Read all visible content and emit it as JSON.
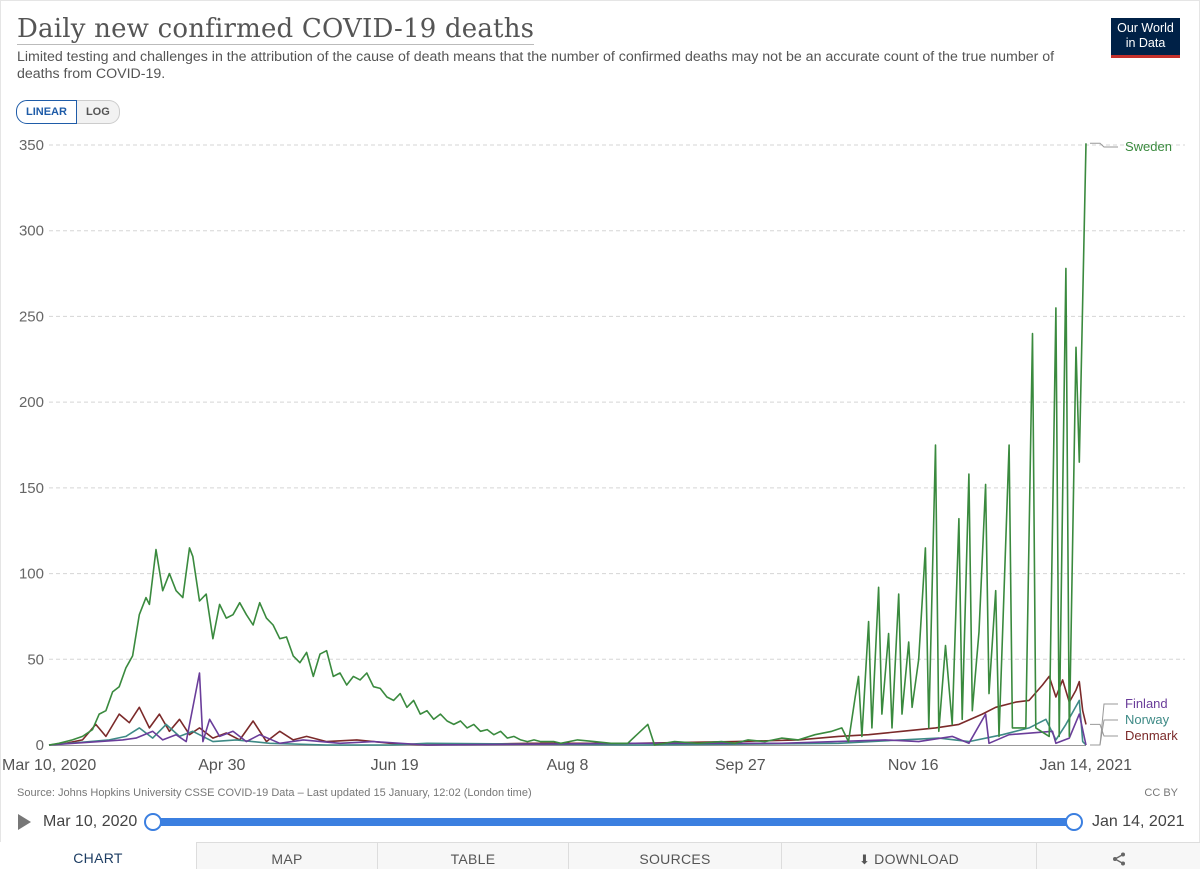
{
  "title": "Daily new confirmed COVID-19 deaths",
  "subtitle": "Limited testing and challenges in the attribution of the cause of death means that the number of confirmed deaths may not be an accurate count of the true number of deaths from COVID-19.",
  "logo": {
    "line1": "Our World",
    "line2": "in Data"
  },
  "scale_toggle": {
    "linear": "LINEAR",
    "log": "LOG"
  },
  "source": "Source: Johns Hopkins University CSSE COVID-19 Data – Last updated 15 January, 12:02 (London time)",
  "license": "CC BY",
  "timeline": {
    "start": "Mar 10, 2020",
    "end": "Jan 14, 2021"
  },
  "tabs": {
    "chart": "CHART",
    "map": "MAP",
    "table": "TABLE",
    "sources": "SOURCES",
    "download": "DOWNLOAD"
  },
  "colors": {
    "Sweden": "#3a8a3e",
    "Finland": "#6a3d9a",
    "Norway": "#3e8a86",
    "Denmark": "#7b2a2a",
    "accent": "#3b7fe0"
  },
  "chart_data": {
    "type": "line",
    "x_start": "2020-03-10",
    "x_end": "2021-01-14",
    "ylim": [
      0,
      350
    ],
    "yticks": [
      0,
      50,
      100,
      150,
      200,
      250,
      300,
      350
    ],
    "xticks": [
      "Mar 10, 2020",
      "Apr 30",
      "Jun 19",
      "Aug 8",
      "Sep 27",
      "Nov 16",
      "Jan 14, 2021"
    ],
    "grid": "horizontal dashed",
    "series": [
      {
        "name": "Sweden",
        "color": "#3a8a3e",
        "points": [
          [
            "2020-03-10",
            0
          ],
          [
            "2020-03-13",
            1
          ],
          [
            "2020-03-17",
            3
          ],
          [
            "2020-03-20",
            5
          ],
          [
            "2020-03-23",
            9
          ],
          [
            "2020-03-25",
            18
          ],
          [
            "2020-03-27",
            20
          ],
          [
            "2020-03-29",
            31
          ],
          [
            "2020-03-31",
            34
          ],
          [
            "2020-04-02",
            45
          ],
          [
            "2020-04-04",
            52
          ],
          [
            "2020-04-06",
            76
          ],
          [
            "2020-04-08",
            86
          ],
          [
            "2020-04-09",
            82
          ],
          [
            "2020-04-11",
            114
          ],
          [
            "2020-04-13",
            90
          ],
          [
            "2020-04-15",
            100
          ],
          [
            "2020-04-17",
            90
          ],
          [
            "2020-04-19",
            86
          ],
          [
            "2020-04-21",
            115
          ],
          [
            "2020-04-22",
            110
          ],
          [
            "2020-04-24",
            84
          ],
          [
            "2020-04-26",
            88
          ],
          [
            "2020-04-28",
            62
          ],
          [
            "2020-04-30",
            82
          ],
          [
            "2020-05-02",
            74
          ],
          [
            "2020-05-04",
            76
          ],
          [
            "2020-05-06",
            83
          ],
          [
            "2020-05-08",
            76
          ],
          [
            "2020-05-10",
            70
          ],
          [
            "2020-05-12",
            83
          ],
          [
            "2020-05-14",
            74
          ],
          [
            "2020-05-16",
            70
          ],
          [
            "2020-05-18",
            62
          ],
          [
            "2020-05-20",
            63
          ],
          [
            "2020-05-22",
            52
          ],
          [
            "2020-05-24",
            48
          ],
          [
            "2020-05-26",
            54
          ],
          [
            "2020-05-28",
            40
          ],
          [
            "2020-05-30",
            53
          ],
          [
            "2020-06-01",
            55
          ],
          [
            "2020-06-03",
            40
          ],
          [
            "2020-06-05",
            42
          ],
          [
            "2020-06-07",
            35
          ],
          [
            "2020-06-09",
            40
          ],
          [
            "2020-06-11",
            38
          ],
          [
            "2020-06-13",
            42
          ],
          [
            "2020-06-15",
            34
          ],
          [
            "2020-06-17",
            33
          ],
          [
            "2020-06-19",
            28
          ],
          [
            "2020-06-21",
            26
          ],
          [
            "2020-06-23",
            30
          ],
          [
            "2020-06-25",
            22
          ],
          [
            "2020-06-27",
            26
          ],
          [
            "2020-06-29",
            18
          ],
          [
            "2020-07-01",
            20
          ],
          [
            "2020-07-03",
            15
          ],
          [
            "2020-07-05",
            18
          ],
          [
            "2020-07-07",
            14
          ],
          [
            "2020-07-09",
            12
          ],
          [
            "2020-07-11",
            14
          ],
          [
            "2020-07-13",
            10
          ],
          [
            "2020-07-15",
            12
          ],
          [
            "2020-07-17",
            8
          ],
          [
            "2020-07-19",
            9
          ],
          [
            "2020-07-21",
            6
          ],
          [
            "2020-07-23",
            8
          ],
          [
            "2020-07-25",
            4
          ],
          [
            "2020-07-27",
            5
          ],
          [
            "2020-07-29",
            3
          ],
          [
            "2020-07-31",
            2
          ],
          [
            "2020-08-02",
            3
          ],
          [
            "2020-08-04",
            2
          ],
          [
            "2020-08-06",
            2
          ],
          [
            "2020-08-08",
            2
          ],
          [
            "2020-08-10",
            1
          ],
          [
            "2020-08-15",
            3
          ],
          [
            "2020-08-20",
            2
          ],
          [
            "2020-08-25",
            1
          ],
          [
            "2020-08-30",
            1
          ],
          [
            "2020-09-05",
            12
          ],
          [
            "2020-09-07",
            0
          ],
          [
            "2020-09-13",
            2
          ],
          [
            "2020-09-20",
            1
          ],
          [
            "2020-09-27",
            2
          ],
          [
            "2020-10-01",
            1
          ],
          [
            "2020-10-05",
            3
          ],
          [
            "2020-10-10",
            2
          ],
          [
            "2020-10-15",
            4
          ],
          [
            "2020-10-20",
            3
          ],
          [
            "2020-10-25",
            6
          ],
          [
            "2020-10-30",
            8
          ],
          [
            "2020-11-02",
            10
          ],
          [
            "2020-11-04",
            2
          ],
          [
            "2020-11-06",
            28
          ],
          [
            "2020-11-07",
            40
          ],
          [
            "2020-11-08",
            5
          ],
          [
            "2020-11-10",
            72
          ],
          [
            "2020-11-11",
            10
          ],
          [
            "2020-11-13",
            92
          ],
          [
            "2020-11-14",
            18
          ],
          [
            "2020-11-16",
            65
          ],
          [
            "2020-11-17",
            10
          ],
          [
            "2020-11-19",
            88
          ],
          [
            "2020-11-20",
            18
          ],
          [
            "2020-11-22",
            60
          ],
          [
            "2020-11-23",
            22
          ],
          [
            "2020-11-25",
            50
          ],
          [
            "2020-11-27",
            115
          ],
          [
            "2020-11-28",
            10
          ],
          [
            "2020-11-30",
            175
          ],
          [
            "2020-12-01",
            8
          ],
          [
            "2020-12-03",
            58
          ],
          [
            "2020-12-05",
            12
          ],
          [
            "2020-12-07",
            132
          ],
          [
            "2020-12-08",
            15
          ],
          [
            "2020-12-10",
            158
          ],
          [
            "2020-12-11",
            20
          ],
          [
            "2020-12-13",
            66
          ],
          [
            "2020-12-15",
            152
          ],
          [
            "2020-12-16",
            30
          ],
          [
            "2020-12-18",
            90
          ],
          [
            "2020-12-19",
            5
          ],
          [
            "2020-12-22",
            175
          ],
          [
            "2020-12-23",
            10
          ],
          [
            "2020-12-27",
            10
          ],
          [
            "2020-12-29",
            240
          ],
          [
            "2020-12-30",
            10
          ],
          [
            "2021-01-03",
            5
          ],
          [
            "2021-01-05",
            255
          ],
          [
            "2021-01-06",
            5
          ],
          [
            "2021-01-08",
            278
          ],
          [
            "2021-01-09",
            5
          ],
          [
            "2021-01-11",
            232
          ],
          [
            "2021-01-12",
            165
          ],
          [
            "2021-01-14",
            351
          ]
        ]
      },
      {
        "name": "Finland",
        "color": "#6a3d9a",
        "points": [
          [
            "2020-03-10",
            0
          ],
          [
            "2020-03-25",
            2
          ],
          [
            "2020-04-01",
            3
          ],
          [
            "2020-04-05",
            4
          ],
          [
            "2020-04-10",
            8
          ],
          [
            "2020-04-13",
            3
          ],
          [
            "2020-04-17",
            6
          ],
          [
            "2020-04-20",
            2
          ],
          [
            "2020-04-24",
            42
          ],
          [
            "2020-04-25",
            2
          ],
          [
            "2020-04-27",
            15
          ],
          [
            "2020-04-30",
            5
          ],
          [
            "2020-05-04",
            8
          ],
          [
            "2020-05-08",
            2
          ],
          [
            "2020-05-12",
            6
          ],
          [
            "2020-05-18",
            1
          ],
          [
            "2020-05-25",
            3
          ],
          [
            "2020-06-05",
            1
          ],
          [
            "2020-06-15",
            2
          ],
          [
            "2020-07-01",
            0
          ],
          [
            "2020-09-01",
            1
          ],
          [
            "2020-10-15",
            1
          ],
          [
            "2020-11-15",
            3
          ],
          [
            "2020-11-25",
            2
          ],
          [
            "2020-12-05",
            5
          ],
          [
            "2020-12-10",
            1
          ],
          [
            "2020-12-15",
            18
          ],
          [
            "2020-12-16",
            1
          ],
          [
            "2020-12-22",
            6
          ],
          [
            "2021-01-04",
            8
          ],
          [
            "2021-01-05",
            1
          ],
          [
            "2021-01-09",
            4
          ],
          [
            "2021-01-12",
            18
          ],
          [
            "2021-01-14",
            0
          ]
        ]
      },
      {
        "name": "Norway",
        "color": "#3e8a86",
        "points": [
          [
            "2020-03-10",
            0
          ],
          [
            "2020-03-28",
            3
          ],
          [
            "2020-04-02",
            5
          ],
          [
            "2020-04-06",
            10
          ],
          [
            "2020-04-10",
            4
          ],
          [
            "2020-04-14",
            12
          ],
          [
            "2020-04-18",
            5
          ],
          [
            "2020-04-22",
            8
          ],
          [
            "2020-04-28",
            2
          ],
          [
            "2020-05-05",
            3
          ],
          [
            "2020-05-15",
            1
          ],
          [
            "2020-06-01",
            0
          ],
          [
            "2020-06-20",
            0
          ],
          [
            "2020-07-01",
            1
          ],
          [
            "2020-09-01",
            0
          ],
          [
            "2020-11-01",
            1
          ],
          [
            "2020-11-20",
            3
          ],
          [
            "2020-12-01",
            4
          ],
          [
            "2020-12-10",
            2
          ],
          [
            "2020-12-20",
            6
          ],
          [
            "2020-12-28",
            10
          ],
          [
            "2021-01-02",
            15
          ],
          [
            "2021-01-05",
            3
          ],
          [
            "2021-01-08",
            12
          ],
          [
            "2021-01-12",
            26
          ],
          [
            "2021-01-13",
            2
          ],
          [
            "2021-01-14",
            0
          ]
        ]
      },
      {
        "name": "Denmark",
        "color": "#7b2a2a",
        "points": [
          [
            "2020-03-10",
            0
          ],
          [
            "2020-03-15",
            1
          ],
          [
            "2020-03-20",
            3
          ],
          [
            "2020-03-24",
            12
          ],
          [
            "2020-03-27",
            5
          ],
          [
            "2020-03-31",
            18
          ],
          [
            "2020-04-03",
            13
          ],
          [
            "2020-04-06",
            22
          ],
          [
            "2020-04-09",
            10
          ],
          [
            "2020-04-12",
            18
          ],
          [
            "2020-04-15",
            8
          ],
          [
            "2020-04-18",
            15
          ],
          [
            "2020-04-21",
            6
          ],
          [
            "2020-04-24",
            10
          ],
          [
            "2020-04-28",
            4
          ],
          [
            "2020-05-02",
            7
          ],
          [
            "2020-05-06",
            3
          ],
          [
            "2020-05-10",
            14
          ],
          [
            "2020-05-14",
            2
          ],
          [
            "2020-05-18",
            8
          ],
          [
            "2020-05-22",
            3
          ],
          [
            "2020-05-26",
            5
          ],
          [
            "2020-06-01",
            2
          ],
          [
            "2020-06-10",
            3
          ],
          [
            "2020-06-20",
            1
          ],
          [
            "2020-07-01",
            0
          ],
          [
            "2020-08-01",
            1
          ],
          [
            "2020-09-01",
            1
          ],
          [
            "2020-10-01",
            2
          ],
          [
            "2020-10-20",
            3
          ],
          [
            "2020-11-01",
            5
          ],
          [
            "2020-11-10",
            6
          ],
          [
            "2020-11-20",
            8
          ],
          [
            "2020-11-30",
            10
          ],
          [
            "2020-12-07",
            12
          ],
          [
            "2020-12-14",
            18
          ],
          [
            "2020-12-18",
            22
          ],
          [
            "2020-12-24",
            25
          ],
          [
            "2020-12-28",
            26
          ],
          [
            "2021-01-01",
            35
          ],
          [
            "2021-01-03",
            40
          ],
          [
            "2021-01-05",
            28
          ],
          [
            "2021-01-07",
            38
          ],
          [
            "2021-01-09",
            25
          ],
          [
            "2021-01-11",
            32
          ],
          [
            "2021-01-12",
            37
          ],
          [
            "2021-01-13",
            20
          ],
          [
            "2021-01-14",
            12
          ]
        ]
      }
    ]
  }
}
